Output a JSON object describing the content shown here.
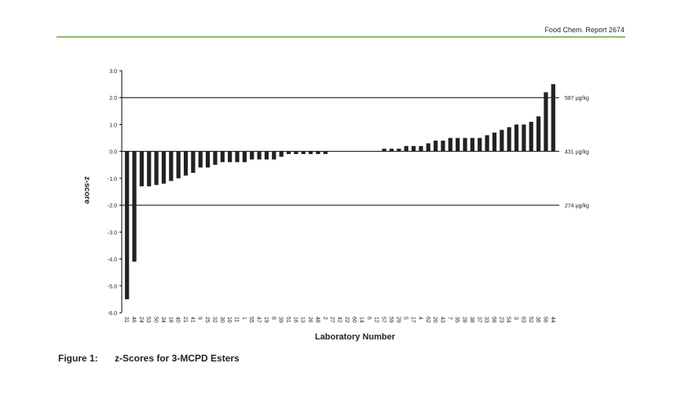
{
  "header": "Food Chem. Report 2674",
  "caption": {
    "label": "Figure 1:",
    "text": "z-Scores for 3-MCPD Esters"
  },
  "chart_data": {
    "type": "bar",
    "x_label": "Laboratory Number",
    "y_label": "z-score",
    "categories": [
      "31",
      "46",
      "24",
      "53",
      "50",
      "34",
      "18",
      "40",
      "21",
      "41",
      "9",
      "25",
      "32",
      "30",
      "10",
      "11",
      "1",
      "55",
      "47",
      "19",
      "8",
      "39",
      "51",
      "16",
      "13",
      "26",
      "48",
      "2",
      "27",
      "42",
      "22",
      "60",
      "14",
      "6",
      "12",
      "57",
      "59",
      "29",
      "5",
      "17",
      "4",
      "62",
      "20",
      "43",
      "7",
      "35",
      "28",
      "38",
      "37",
      "33",
      "58",
      "23",
      "54",
      "3",
      "63",
      "52",
      "36",
      "56",
      "44"
    ],
    "values": [
      -5.5,
      -4.1,
      -1.3,
      -1.3,
      -1.25,
      -1.2,
      -1.1,
      -1.0,
      -0.9,
      -0.8,
      -0.6,
      -0.6,
      -0.5,
      -0.4,
      -0.4,
      -0.4,
      -0.4,
      -0.3,
      -0.3,
      -0.3,
      -0.3,
      -0.2,
      -0.1,
      -0.1,
      -0.1,
      -0.1,
      -0.1,
      -0.1,
      0,
      0,
      0,
      0,
      0,
      0,
      0,
      0.1,
      0.1,
      0.1,
      0.2,
      0.2,
      0.2,
      0.3,
      0.4,
      0.4,
      0.5,
      0.5,
      0.5,
      0.5,
      0.5,
      0.6,
      0.7,
      0.8,
      0.9,
      1.0,
      1.0,
      1.1,
      1.3,
      2.2,
      2.5
    ],
    "color": "#222222",
    "ylim": [
      -6,
      3
    ],
    "yticks": [
      {
        "value": 3,
        "label": "3.0"
      },
      {
        "value": 2,
        "label": "2.0"
      },
      {
        "value": 1,
        "label": "1.0"
      },
      {
        "value": 0,
        "label": "0.0"
      },
      {
        "value": -1,
        "label": "-1.0"
      },
      {
        "value": -2,
        "label": "-2.0"
      },
      {
        "value": -3,
        "label": "-3.0"
      },
      {
        "value": -4,
        "label": "-4.0"
      },
      {
        "value": -5,
        "label": "-5.0"
      },
      {
        "value": -6,
        "label": "-6.0"
      }
    ],
    "reference_lines": [
      {
        "value": 2,
        "label": "587 µg/kg"
      },
      {
        "value": 0,
        "label": "431 µg/kg"
      },
      {
        "value": -2,
        "label": "274 µg/kg"
      }
    ]
  }
}
